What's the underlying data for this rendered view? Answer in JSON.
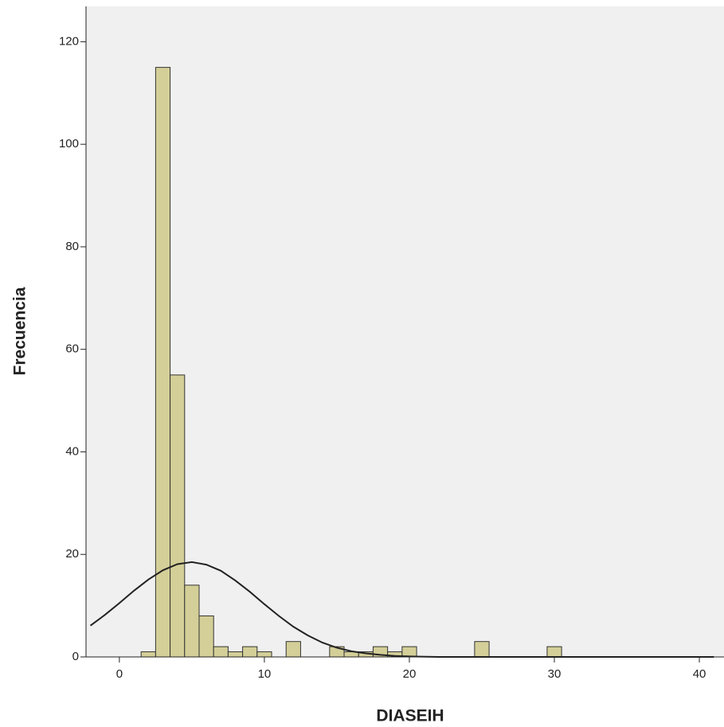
{
  "chart_data": {
    "type": "histogram",
    "x_label": "DIASEIH",
    "y_label": "Frecuencia",
    "bins": [
      1.5,
      2.5,
      3.5,
      4.5,
      5.5,
      6.5,
      7.5,
      8.5,
      9.5,
      10.5,
      11.5,
      12.5,
      13.5,
      14.5,
      15.5,
      16.5,
      17.5,
      18.5,
      19.5,
      20.5,
      21.5,
      22.5,
      23.5,
      24.5,
      25.5,
      26.5,
      27.5,
      28.5,
      29.5,
      30.5
    ],
    "counts": [
      1,
      115,
      55,
      14,
      8,
      2,
      1,
      2,
      1,
      0,
      3,
      0,
      0,
      2,
      1,
      1,
      2,
      1,
      2,
      0,
      0,
      0,
      0,
      3,
      0,
      0,
      0,
      0,
      2
    ],
    "color": "#d4cf98",
    "curve": {
      "x": [
        -2,
        -1,
        0,
        1,
        2,
        3,
        4,
        5,
        6,
        7,
        8,
        9,
        10,
        11,
        12,
        13,
        14,
        15,
        16,
        17,
        18,
        19,
        20,
        22,
        30,
        41
      ],
      "y": [
        6.1,
        8.2,
        10.5,
        12.9,
        15.1,
        16.9,
        18.1,
        18.5,
        18.0,
        16.8,
        14.9,
        12.7,
        10.3,
        8.0,
        5.9,
        4.2,
        2.8,
        1.8,
        1.1,
        0.7,
        0.4,
        0.2,
        0.1,
        0,
        0,
        0
      ],
      "color": "#222222"
    },
    "xlim": [
      -2.3,
      41.7
    ],
    "ylim": [
      0,
      126.9
    ],
    "xticks": [
      0,
      10,
      20,
      30,
      40
    ],
    "yticks": [
      0,
      20,
      40,
      60,
      80,
      100,
      120
    ]
  }
}
